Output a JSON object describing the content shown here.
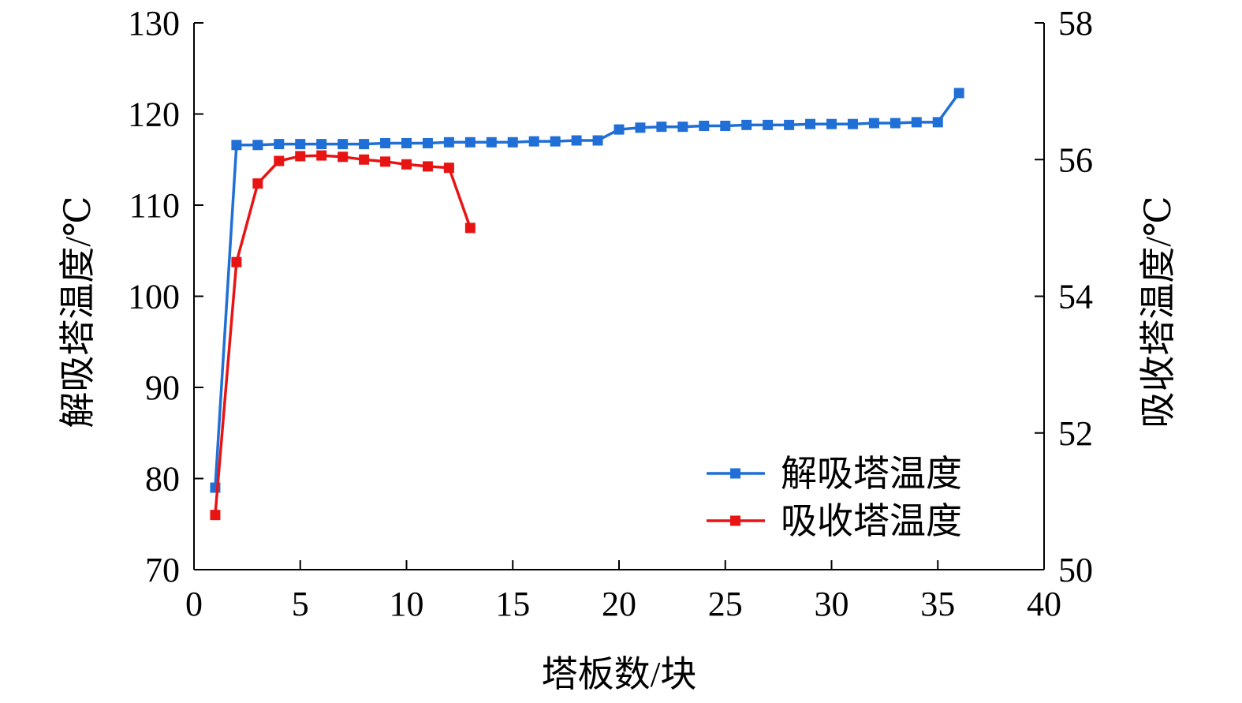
{
  "chart_data": {
    "type": "line",
    "title": "",
    "xlabel": "塔板数/块",
    "ylabel_left": "解吸塔温度/℃",
    "ylabel_right": "吸收塔温度/℃",
    "xlim": [
      0,
      40
    ],
    "xticks": [
      0,
      5,
      10,
      15,
      20,
      25,
      30,
      35,
      40
    ],
    "ylim_left": [
      70,
      130
    ],
    "yticks_left": [
      70,
      80,
      90,
      100,
      110,
      120,
      130
    ],
    "ylim_right": [
      50,
      58
    ],
    "yticks_right": [
      50,
      52,
      54,
      56,
      58
    ],
    "grid": false,
    "legend_position": "bottom-right",
    "series": [
      {
        "name": "解吸塔温度",
        "axis": "left",
        "color": "#1F6FD6",
        "x": [
          1,
          2,
          3,
          4,
          5,
          6,
          7,
          8,
          9,
          10,
          11,
          12,
          13,
          14,
          15,
          16,
          17,
          18,
          19,
          20,
          21,
          22,
          23,
          24,
          25,
          26,
          27,
          28,
          29,
          30,
          31,
          32,
          33,
          34,
          35,
          36
        ],
        "y": [
          79.0,
          116.6,
          116.6,
          116.7,
          116.7,
          116.7,
          116.7,
          116.7,
          116.8,
          116.8,
          116.8,
          116.9,
          116.9,
          116.9,
          116.9,
          117.0,
          117.0,
          117.1,
          117.1,
          118.3,
          118.5,
          118.6,
          118.6,
          118.7,
          118.7,
          118.8,
          118.8,
          118.8,
          118.9,
          118.9,
          118.9,
          119.0,
          119.0,
          119.1,
          119.1,
          122.3
        ]
      },
      {
        "name": "吸收塔温度",
        "axis": "right",
        "color": "#E81414",
        "x": [
          1,
          2,
          3,
          4,
          5,
          6,
          7,
          8,
          9,
          10,
          11,
          12,
          13
        ],
        "y": [
          50.8,
          54.5,
          55.65,
          55.98,
          56.05,
          56.06,
          56.04,
          56.0,
          55.97,
          55.93,
          55.9,
          55.88,
          55.0
        ]
      }
    ]
  }
}
